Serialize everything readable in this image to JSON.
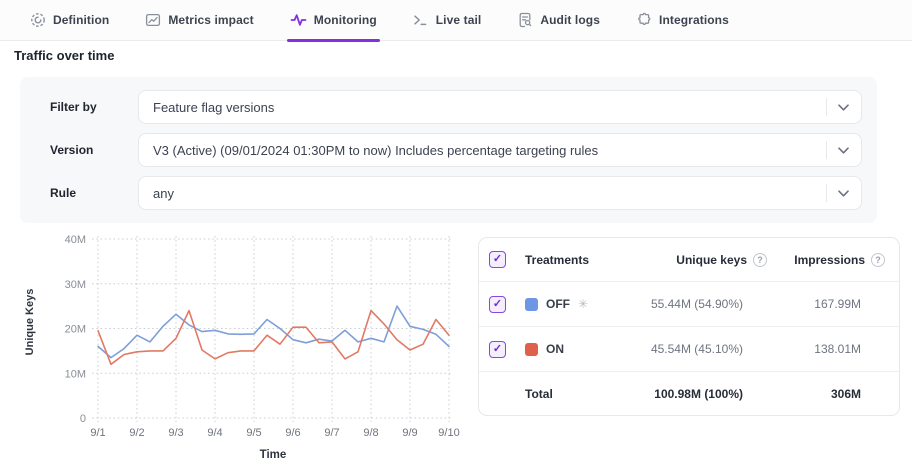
{
  "tabs": {
    "items": [
      {
        "label": "Definition",
        "icon": "definition-icon",
        "active": false
      },
      {
        "label": "Metrics impact",
        "icon": "metrics-impact-icon",
        "active": false
      },
      {
        "label": "Monitoring",
        "icon": "monitoring-pulse-icon",
        "active": true
      },
      {
        "label": "Live tail",
        "icon": "terminal-icon",
        "active": false
      },
      {
        "label": "Audit logs",
        "icon": "audit-log-icon",
        "active": false
      },
      {
        "label": "Integrations",
        "icon": "puzzle-icon",
        "active": false
      }
    ]
  },
  "page": {
    "title": "Traffic over time"
  },
  "filters": [
    {
      "label": "Filter by",
      "value": "Feature flag versions"
    },
    {
      "label": "Version",
      "value": "V3 (Active) (09/01/2024 01:30PM to now) Includes percentage targeting rules"
    },
    {
      "label": "Rule",
      "value": "any"
    }
  ],
  "treatments_table": {
    "header": {
      "treatments": "Treatments",
      "unique_keys": "Unique keys",
      "impressions": "Impressions"
    },
    "rows": [
      {
        "name": "OFF",
        "color": "#6d96e4",
        "is_default": true,
        "unique_keys": "55.44M (54.90%)",
        "impressions": "167.99M",
        "checked": true
      },
      {
        "name": "ON",
        "color": "#df614b",
        "is_default": false,
        "unique_keys": "45.54M (45.10%)",
        "impressions": "138.01M",
        "checked": true
      }
    ],
    "total": {
      "label": "Total",
      "unique_keys": "100.98M (100%)",
      "impressions": "306M"
    }
  },
  "icons": {
    "check": "✓",
    "help": "?",
    "default_treatment": "✳"
  },
  "colors": {
    "accent": "#8430e0",
    "checkbox_purple": "#7c3aed",
    "off_blue": "#6d96e4",
    "on_red": "#df614b",
    "grid": "#c9cdd3"
  },
  "chart_data": {
    "type": "line",
    "title": "",
    "xlabel": "Time",
    "ylabel": "Unique Keys",
    "x_ticks": [
      "9/1",
      "9/2",
      "9/3",
      "9/4",
      "9/5",
      "9/6",
      "9/7",
      "9/8",
      "9/9",
      "9/10"
    ],
    "y_ticks": [
      "0",
      "10M",
      "20M",
      "30M",
      "40M"
    ],
    "ylim": [
      0,
      40
    ],
    "y_unit": "M",
    "grid": true,
    "legend_position": "table-right",
    "series": [
      {
        "name": "OFF",
        "color": "#7d9ed9",
        "values": [
          16.0,
          13.5,
          15.5,
          18.5,
          17.0,
          20.5,
          23.2,
          20.8,
          19.3,
          19.6,
          18.8,
          18.7,
          18.8,
          22.0,
          20.0,
          17.5,
          16.8,
          17.6,
          17.2,
          19.6,
          17.0,
          17.8,
          17.0,
          25.0,
          20.5,
          19.8,
          18.7,
          16.0
        ]
      },
      {
        "name": "ON",
        "color": "#e17a64",
        "values": [
          19.5,
          12.0,
          14.2,
          14.8,
          15.0,
          15.0,
          17.8,
          24.0,
          15.2,
          13.2,
          14.6,
          15.0,
          15.0,
          18.5,
          16.5,
          20.3,
          20.3,
          16.8,
          17.0,
          13.2,
          14.8,
          24.0,
          21.0,
          17.5,
          15.2,
          16.5,
          22.0,
          18.5
        ]
      }
    ]
  }
}
